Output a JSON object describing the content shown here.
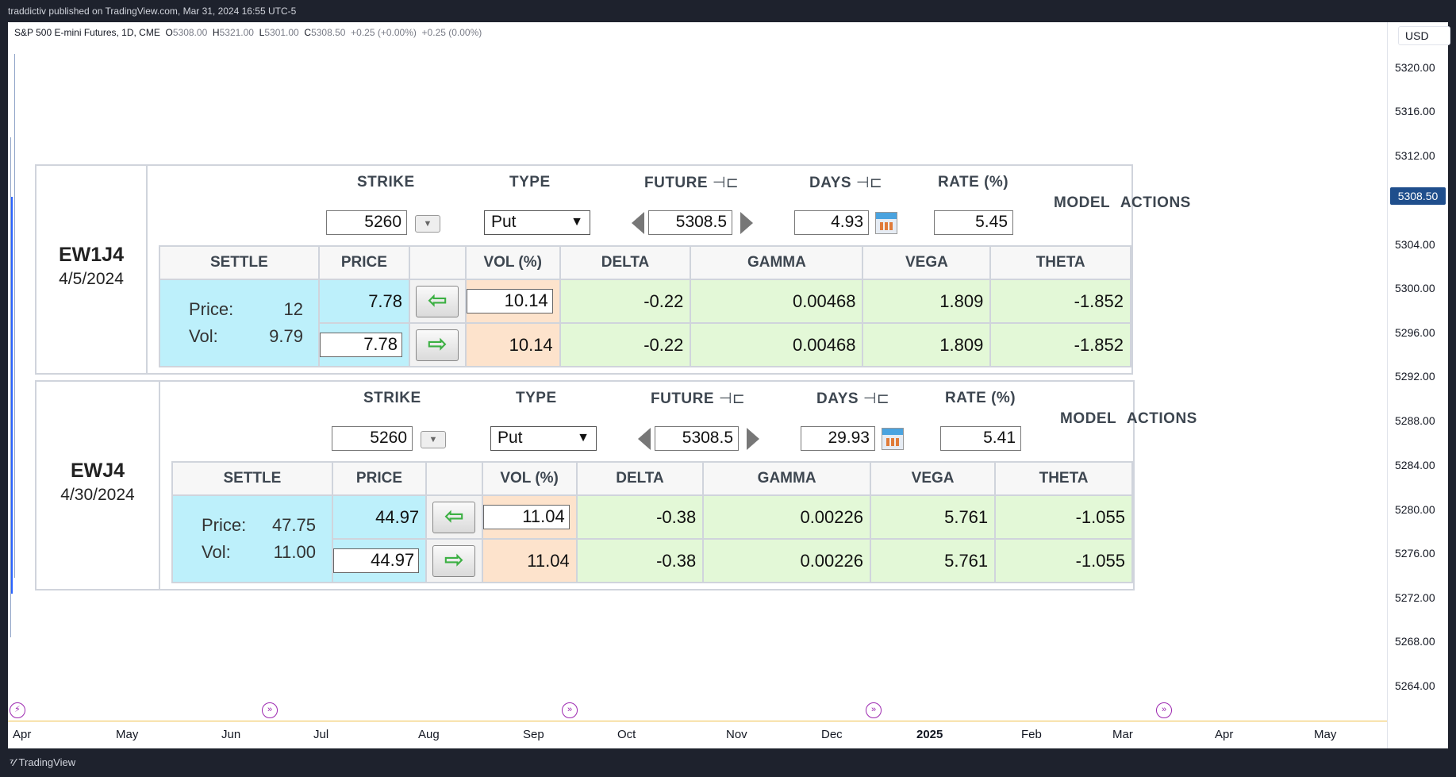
{
  "topbar": {
    "text": "traddictiv published on TradingView.com, Mar 31, 2024 16:55 UTC-5"
  },
  "legend": {
    "symbol": "S&P 500 E-mini Futures, 1D, CME",
    "o_label": "O",
    "o": "5308.00",
    "h_label": "H",
    "h": "5321.00",
    "l_label": "L",
    "l": "5301.00",
    "c_label": "C",
    "c": "5308.50",
    "change": "+0.25 (+0.00%)",
    "change2": "+0.25 (0.00%)"
  },
  "axis": {
    "currency": "USD",
    "prices": [
      "5320.00",
      "5316.00",
      "5312.00",
      "5304.00",
      "5300.00",
      "5296.00",
      "5292.00",
      "5288.00",
      "5284.00",
      "5280.00",
      "5276.00",
      "5272.00",
      "5268.00",
      "5264.00"
    ],
    "current_price": "5308.50",
    "months": [
      "Apr",
      "May",
      "Jun",
      "Jul",
      "Aug",
      "Sep",
      "Oct",
      "Nov",
      "Dec",
      "2025",
      "Feb",
      "Mar",
      "Apr",
      "May"
    ]
  },
  "headers": {
    "strike": "STRIKE",
    "type": "TYPE",
    "future": "FUTURE",
    "days": "DAYS",
    "rate": "RATE (%)",
    "model_actions": "MODEL  ACTIONS",
    "settle": "SETTLE",
    "price": "PRICE",
    "vol": "VOL (%)",
    "delta": "DELTA",
    "gamma": "GAMMA",
    "vega": "VEGA",
    "theta": "THETA",
    "price_label": "Price:",
    "vol_label": "Vol:"
  },
  "panels": [
    {
      "symbol": "EW1J4",
      "expiry": "4/5/2024",
      "strike": "5260",
      "type": "Put",
      "future": "5308.5",
      "days": "4.93",
      "rate": "5.45",
      "settle_price": "12",
      "settle_vol": "9.79",
      "row1": {
        "price": "7.78",
        "vol": "10.14",
        "delta": "-0.22",
        "gamma": "0.00468",
        "vega": "1.809",
        "theta": "-1.852"
      },
      "row2": {
        "price": "7.78",
        "vol": "10.14",
        "delta": "-0.22",
        "gamma": "0.00468",
        "vega": "1.809",
        "theta": "-1.852"
      }
    },
    {
      "symbol": "EWJ4",
      "expiry": "4/30/2024",
      "strike": "5260",
      "type": "Put",
      "future": "5308.5",
      "days": "29.93",
      "rate": "5.41",
      "settle_price": "47.75",
      "settle_vol": "11.00",
      "row1": {
        "price": "44.97",
        "vol": "11.04",
        "delta": "-0.38",
        "gamma": "0.00226",
        "vega": "5.761",
        "theta": "-1.055"
      },
      "row2": {
        "price": "44.97",
        "vol": "11.04",
        "delta": "-0.38",
        "gamma": "0.00226",
        "vega": "5.761",
        "theta": "-1.055"
      }
    }
  ],
  "footer": {
    "brand": "TradingView"
  }
}
